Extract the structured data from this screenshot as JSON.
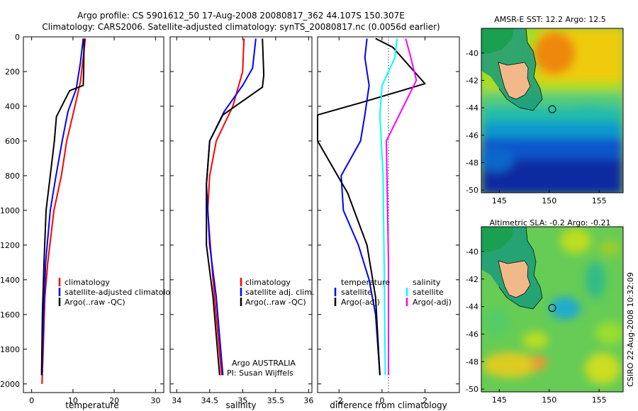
{
  "header": {
    "line1": "Argo profile: CS 5901612_50 17-Aug-2008 20080817_362 44.107S 150.307E",
    "line2": "Climatology: CARS2006. Satellite-adjusted climatology: synTS_20080817.nc (0.0056d earlier)"
  },
  "side_label": "CSIRO 22-Aug-2008 10:32:09",
  "panel_footer": {
    "line1": "Argo AUSTRALIA",
    "line2": "PI: Susan Wijffels"
  },
  "colors": {
    "red": "#ff0000",
    "blue": "#0000ff",
    "black": "#000000",
    "cyan": "#00ffff",
    "magenta": "#ff00ff"
  },
  "chart_data": [
    {
      "type": "line",
      "xlabel": "temperature",
      "ylim": [
        0,
        2050
      ],
      "y_reversed": true,
      "xlim": [
        -2,
        32
      ],
      "xticks": [
        0,
        10,
        20,
        30
      ],
      "yticks": [
        0,
        200,
        400,
        600,
        800,
        1000,
        1200,
        1400,
        1600,
        1800,
        2000
      ],
      "legend": [
        "climatology",
        "satellite-adjusted climatology",
        "Argo(..raw -QC)"
      ],
      "series": [
        {
          "name": "climatology",
          "color": "#ff0000",
          "x": [
            13.0,
            12.6,
            11.8,
            10.3,
            8.5,
            7.2,
            5.4,
            3.9,
            3.2,
            2.8,
            2.5
          ],
          "y": [
            10,
            100,
            260,
            420,
            600,
            800,
            1000,
            1300,
            1500,
            1800,
            2000
          ]
        },
        {
          "name": "satellite-adjusted climatology",
          "color": "#0000ff",
          "x": [
            12.5,
            11.8,
            10.8,
            8.8,
            7.4,
            5.9,
            4.5,
            3.4,
            2.9,
            2.5
          ],
          "y": [
            10,
            150,
            300,
            430,
            600,
            800,
            1000,
            1300,
            1600,
            1950
          ]
        },
        {
          "name": "Argo(..raw -QC)",
          "color": "#000000",
          "x": [
            12.7,
            12.6,
            12.5,
            9.2,
            6.0,
            5.5,
            4.5,
            3.5,
            3.0,
            2.6,
            2.4
          ],
          "y": [
            10,
            200,
            280,
            310,
            460,
            600,
            800,
            1000,
            1300,
            1600,
            1950
          ]
        }
      ]
    },
    {
      "type": "line",
      "xlabel": "salinity",
      "ylim": [
        0,
        2050
      ],
      "y_reversed": true,
      "xlim": [
        33.9,
        36.05
      ],
      "xticks": [
        34,
        34.5,
        35,
        35.5,
        36
      ],
      "legend": [
        "climatology",
        "satellite adj. clim.",
        "Argo(..raw -QC)"
      ],
      "series": [
        {
          "name": "climatology",
          "color": "#ff0000",
          "x": [
            35.02,
            35.0,
            34.85,
            34.6,
            34.5,
            34.47,
            34.55,
            34.68
          ],
          "y": [
            10,
            200,
            400,
            600,
            800,
            1000,
            1400,
            1950
          ]
        },
        {
          "name": "satellite adj. clim.",
          "color": "#0000ff",
          "x": [
            35.2,
            35.15,
            35.0,
            34.72,
            34.5,
            34.45,
            34.5,
            34.6,
            34.7
          ],
          "y": [
            10,
            180,
            280,
            430,
            600,
            850,
            1200,
            1500,
            1950
          ]
        },
        {
          "name": "Argo(..raw -QC)",
          "color": "#000000",
          "x": [
            35.3,
            35.32,
            35.3,
            34.7,
            34.5,
            34.45,
            34.45,
            34.55,
            34.65
          ],
          "y": [
            10,
            220,
            290,
            450,
            600,
            850,
            1200,
            1500,
            1950
          ]
        }
      ]
    },
    {
      "type": "line",
      "xlabel": "difference from climatology",
      "ylim": [
        0,
        2050
      ],
      "y_reversed": true,
      "xlim": [
        -3,
        3.6
      ],
      "xticks": [
        -2,
        0,
        2
      ],
      "legend_left_title": "temperature",
      "legend_right_title": "salinity",
      "legend": [
        "satellite",
        "Argo(-adj)",
        "satellite",
        "Argo(-adj)"
      ],
      "series": [
        {
          "name": "temperature satellite",
          "color": "#0000ff",
          "x": [
            -0.7,
            -0.8,
            -0.6,
            -0.8,
            -1.0,
            -1.9,
            -1.8,
            -1.1,
            -0.6,
            -0.3,
            -0.1
          ],
          "y": [
            10,
            120,
            280,
            450,
            600,
            800,
            1000,
            1200,
            1400,
            1600,
            1950
          ]
        },
        {
          "name": "temperature Argo(-adj)",
          "color": "#000000",
          "x": [
            -0.3,
            0.5,
            2.0,
            -1.0,
            -3.0,
            -3.0,
            -1.6,
            -0.7,
            -0.3,
            -0.1
          ],
          "y": [
            10,
            60,
            270,
            380,
            450,
            600,
            900,
            1200,
            1500,
            1950
          ]
        },
        {
          "name": "salinity satellite",
          "color": "#00ffff",
          "x": [
            0.7,
            0.6,
            0.0,
            -0.1,
            0.05,
            0.1,
            0.15
          ],
          "y": [
            10,
            120,
            280,
            450,
            800,
            1300,
            1950
          ]
        },
        {
          "name": "salinity Argo(-adj)",
          "color": "#ff00ff",
          "x": [
            1.1,
            1.3,
            1.6,
            1.0,
            0.2,
            0.3,
            0.3
          ],
          "y": [
            10,
            100,
            250,
            400,
            600,
            1300,
            1950
          ]
        }
      ]
    },
    {
      "type": "heatmap",
      "title": "AMSR-E SST: 12.2 Argo: 12.5",
      "xticks": [
        145,
        150,
        155
      ],
      "yticks": [
        -40,
        -42,
        -44,
        -46,
        -48,
        -50
      ],
      "xlim": [
        143.2,
        157.4
      ],
      "ylim": [
        -50.2,
        -38.2
      ],
      "profile": [
        150.3,
        -44.1
      ]
    },
    {
      "type": "heatmap",
      "title": "Altimetric SLA: -0.2 Argo: -0.21",
      "xticks": [
        145,
        150,
        155
      ],
      "yticks": [
        -40,
        -42,
        -44,
        -46,
        -48,
        -50
      ],
      "xlim": [
        143.2,
        157.4
      ],
      "ylim": [
        -50.2,
        -38.2
      ],
      "profile": [
        150.3,
        -44.1
      ]
    }
  ]
}
